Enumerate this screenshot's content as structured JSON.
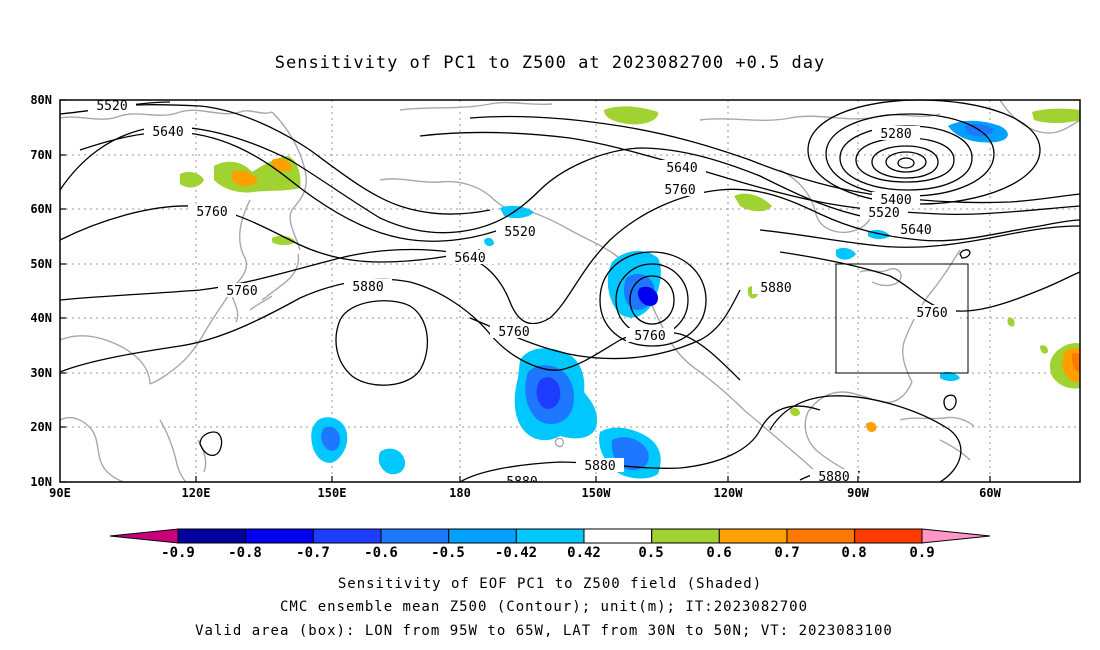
{
  "title": "Sensitivity of PC1 to Z500 at 2023082700 +0.5 day",
  "lat_ticks": [
    "80N",
    "70N",
    "60N",
    "50N",
    "40N",
    "30N",
    "20N",
    "10N"
  ],
  "lon_ticks": [
    "90E",
    "120E",
    "150E",
    "180",
    "150W",
    "120W",
    "90W",
    "60W"
  ],
  "contour_labels": [
    {
      "id": "c5520a",
      "text": "5520"
    },
    {
      "id": "c5640a",
      "text": "5640"
    },
    {
      "id": "c5760a",
      "text": "5760"
    },
    {
      "id": "c5520b",
      "text": "5520"
    },
    {
      "id": "c5640b",
      "text": "5640"
    },
    {
      "id": "c5760b",
      "text": "5760"
    },
    {
      "id": "c5880a",
      "text": "5880"
    },
    {
      "id": "c5760c",
      "text": "5760"
    },
    {
      "id": "c5760d",
      "text": "5760"
    },
    {
      "id": "c5640c",
      "text": "5640"
    },
    {
      "id": "c5760e",
      "text": "5760"
    },
    {
      "id": "c5880b",
      "text": "5880"
    },
    {
      "id": "c5280",
      "text": "5280"
    },
    {
      "id": "c5400",
      "text": "5400"
    },
    {
      "id": "c5520c",
      "text": "5520"
    },
    {
      "id": "c5640d",
      "text": "5640"
    },
    {
      "id": "c5760f",
      "text": "5760"
    },
    {
      "id": "c5880c",
      "text": "5880"
    },
    {
      "id": "c5880d",
      "text": "5880"
    },
    {
      "id": "c5880e",
      "text": "5880"
    }
  ],
  "colorbar": {
    "labels": [
      "-0.9",
      "-0.8",
      "-0.7",
      "-0.6",
      "-0.5",
      "-0.42",
      "0.42",
      "0.5",
      "0.6",
      "0.7",
      "0.8",
      "0.9"
    ],
    "colors": {
      "low_arrow": "#c8007c",
      "bins": [
        "#0000a0",
        "#0000f0",
        "#1e3cff",
        "#1e78ff",
        "#00a0ff",
        "#00c8ff",
        "#ffffff",
        "#a0d232",
        "#ffa000",
        "#ff7800",
        "#ff3c00",
        "#ff0000"
      ],
      "high_arrow": "#ff96c8"
    }
  },
  "captions": [
    "Sensitivity of EOF PC1 to Z500 field (Shaded)",
    "CMC ensemble mean Z500 (Contour); unit(m); IT:2023082700",
    "Valid area (box): LON from 95W to 65W, LAT from 30N to 50N; VT: 2023083100"
  ]
}
